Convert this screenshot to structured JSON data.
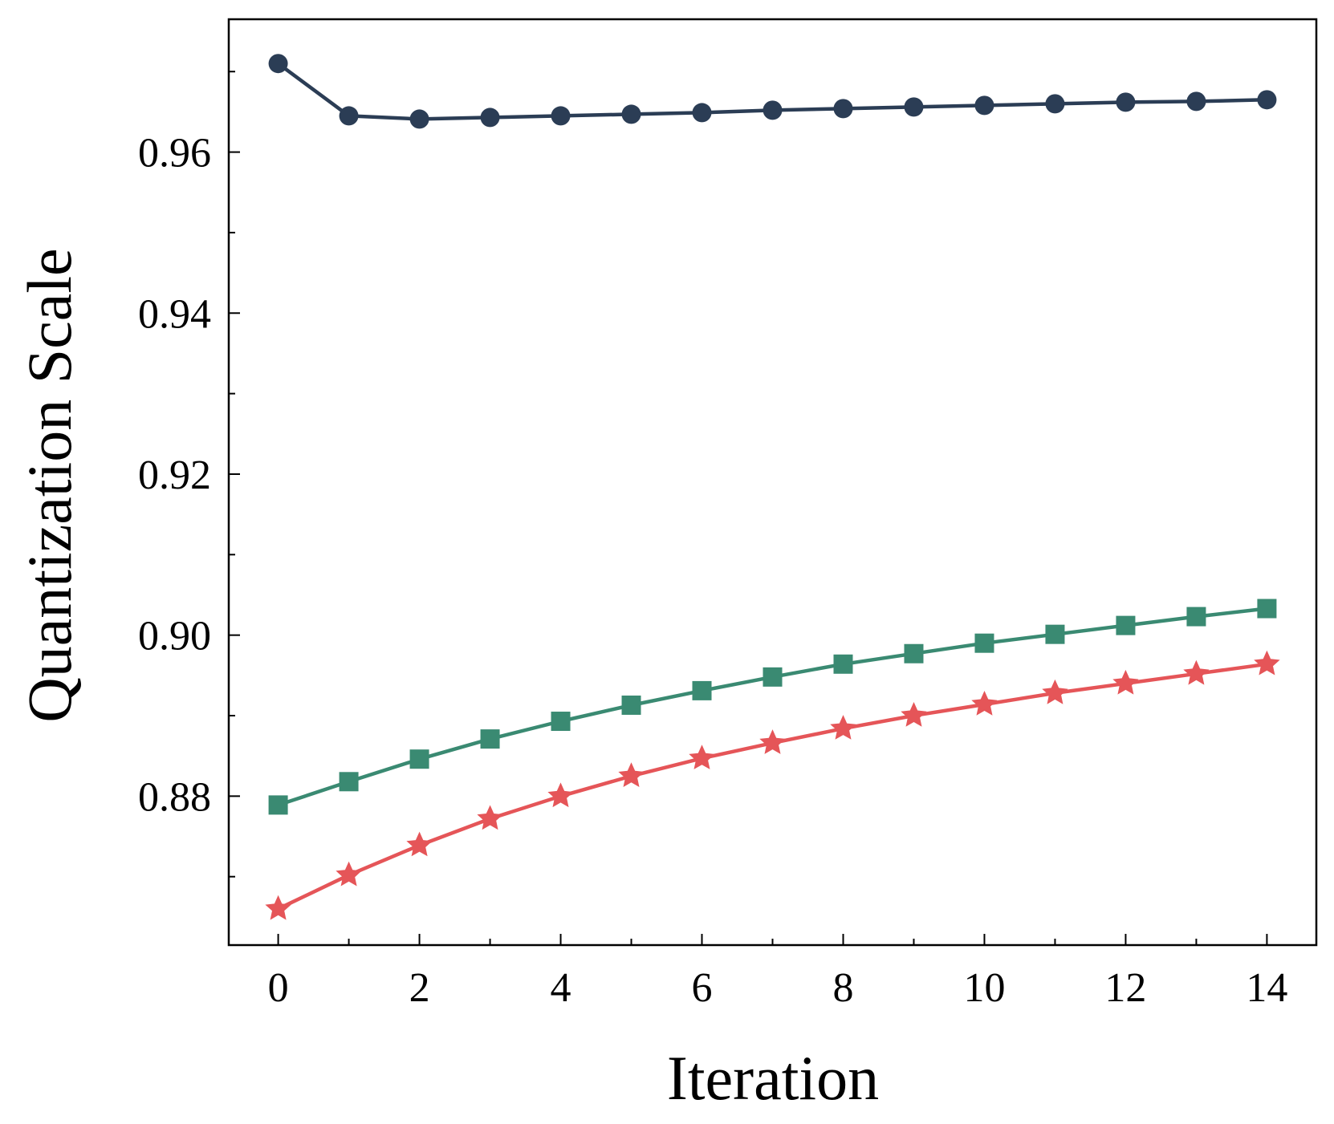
{
  "chart_data": {
    "type": "line",
    "title": "",
    "xlabel": "Iteration",
    "ylabel": "Quantization Scale",
    "xlim": [
      -0.7,
      14.7
    ],
    "ylim": [
      0.8615,
      0.9765
    ],
    "xticks": [
      0,
      2,
      4,
      6,
      8,
      10,
      12,
      14
    ],
    "xtick_labels": [
      "0",
      "2",
      "4",
      "6",
      "8",
      "10",
      "12",
      "14"
    ],
    "yticks": [
      0.88,
      0.9,
      0.92,
      0.94,
      0.96
    ],
    "ytick_labels": [
      "0.88",
      "0.90",
      "0.92",
      "0.94",
      "0.96"
    ],
    "x": [
      0,
      1,
      2,
      3,
      4,
      5,
      6,
      7,
      8,
      9,
      10,
      11,
      12,
      13,
      14
    ],
    "grid": false,
    "legend": "none",
    "series": [
      {
        "marker": "circle",
        "color": "#2b3d55",
        "values": [
          0.971,
          0.9645,
          0.9641,
          0.9643,
          0.9645,
          0.9647,
          0.9649,
          0.9652,
          0.9654,
          0.9656,
          0.9658,
          0.966,
          0.9662,
          0.9663,
          0.9665
        ]
      },
      {
        "marker": "square",
        "color": "#3a8a72",
        "values": [
          0.8789,
          0.8818,
          0.8846,
          0.8871,
          0.8893,
          0.8913,
          0.8931,
          0.8948,
          0.8964,
          0.8977,
          0.899,
          0.9001,
          0.9012,
          0.9023,
          0.9033
        ]
      },
      {
        "marker": "star",
        "color": "#e55558",
        "values": [
          0.866,
          0.8702,
          0.8739,
          0.8772,
          0.88,
          0.8825,
          0.8847,
          0.8866,
          0.8884,
          0.89,
          0.8914,
          0.8928,
          0.894,
          0.8952,
          0.8964
        ]
      }
    ]
  }
}
